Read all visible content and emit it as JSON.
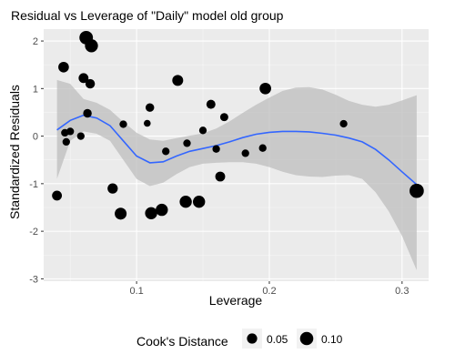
{
  "chart_data": {
    "type": "scatter",
    "title": "Residual vs Leverage of \"Daily\" model old group",
    "xlabel": "Leverage",
    "ylabel": "Standardized Residuals",
    "xlim": [
      0.03,
      0.32
    ],
    "ylim": [
      -3.05,
      2.25
    ],
    "x_ticks": [
      0.1,
      0.2,
      0.3
    ],
    "x_tick_labels": [
      "0.1",
      "0.2",
      "0.3"
    ],
    "y_ticks": [
      -3,
      -2,
      -1,
      0,
      1,
      2
    ],
    "y_tick_labels": [
      "-3",
      "-2",
      "-1",
      "0",
      "1",
      "2"
    ],
    "grid": true,
    "background_color": "#ebebeb",
    "point_color": "#000000",
    "smooth_color": "#3366ff",
    "band_color": "#bdbdbd",
    "legend": {
      "title": "Cook's Distance",
      "position": "bottom",
      "entries": [
        {
          "label": "0.05",
          "cooks": 0.05
        },
        {
          "label": "0.10",
          "cooks": 0.1
        }
      ]
    },
    "points": [
      {
        "x": 0.04,
        "y": -1.25,
        "cooks": 0.045
      },
      {
        "x": 0.045,
        "y": 1.45,
        "cooks": 0.055
      },
      {
        "x": 0.046,
        "y": 0.07,
        "cooks": 0.02
      },
      {
        "x": 0.047,
        "y": -0.12,
        "cooks": 0.02
      },
      {
        "x": 0.05,
        "y": 0.1,
        "cooks": 0.02
      },
      {
        "x": 0.058,
        "y": 0.0,
        "cooks": 0.02
      },
      {
        "x": 0.06,
        "y": 1.22,
        "cooks": 0.045
      },
      {
        "x": 0.062,
        "y": 2.07,
        "cooks": 0.105
      },
      {
        "x": 0.063,
        "y": 0.48,
        "cooks": 0.03
      },
      {
        "x": 0.065,
        "y": 1.1,
        "cooks": 0.04
      },
      {
        "x": 0.066,
        "y": 1.9,
        "cooks": 0.095
      },
      {
        "x": 0.082,
        "y": -1.1,
        "cooks": 0.05
      },
      {
        "x": 0.088,
        "y": -1.63,
        "cooks": 0.075
      },
      {
        "x": 0.09,
        "y": 0.25,
        "cooks": 0.02
      },
      {
        "x": 0.108,
        "y": 0.27,
        "cooks": 0.015
      },
      {
        "x": 0.11,
        "y": 0.6,
        "cooks": 0.03
      },
      {
        "x": 0.111,
        "y": -1.62,
        "cooks": 0.08
      },
      {
        "x": 0.119,
        "y": -1.55,
        "cooks": 0.08
      },
      {
        "x": 0.122,
        "y": -0.32,
        "cooks": 0.02
      },
      {
        "x": 0.131,
        "y": 1.17,
        "cooks": 0.06
      },
      {
        "x": 0.137,
        "y": -1.38,
        "cooks": 0.08
      },
      {
        "x": 0.138,
        "y": -0.15,
        "cooks": 0.02
      },
      {
        "x": 0.147,
        "y": -1.38,
        "cooks": 0.08
      },
      {
        "x": 0.15,
        "y": 0.12,
        "cooks": 0.02
      },
      {
        "x": 0.156,
        "y": 0.67,
        "cooks": 0.035
      },
      {
        "x": 0.16,
        "y": -0.27,
        "cooks": 0.02
      },
      {
        "x": 0.163,
        "y": -0.85,
        "cooks": 0.045
      },
      {
        "x": 0.166,
        "y": 0.4,
        "cooks": 0.025
      },
      {
        "x": 0.182,
        "y": -0.36,
        "cooks": 0.02
      },
      {
        "x": 0.195,
        "y": -0.25,
        "cooks": 0.02
      },
      {
        "x": 0.197,
        "y": 1.0,
        "cooks": 0.07
      },
      {
        "x": 0.256,
        "y": 0.26,
        "cooks": 0.02
      },
      {
        "x": 0.311,
        "y": -1.15,
        "cooks": 0.12
      }
    ],
    "smooth": [
      {
        "x": 0.04,
        "y": 0.13,
        "lo": -0.9,
        "hi": 1.18
      },
      {
        "x": 0.05,
        "y": 0.33,
        "lo": -0.1,
        "hi": 1.1
      },
      {
        "x": 0.06,
        "y": 0.44,
        "lo": 0.1,
        "hi": 0.78
      },
      {
        "x": 0.07,
        "y": 0.38,
        "lo": 0.05,
        "hi": 0.7
      },
      {
        "x": 0.08,
        "y": 0.22,
        "lo": -0.1,
        "hi": 0.55
      },
      {
        "x": 0.09,
        "y": -0.1,
        "lo": -0.5,
        "hi": 0.3
      },
      {
        "x": 0.1,
        "y": -0.42,
        "lo": -0.9,
        "hi": 0.07
      },
      {
        "x": 0.11,
        "y": -0.56,
        "lo": -1.05,
        "hi": -0.07
      },
      {
        "x": 0.12,
        "y": -0.54,
        "lo": -0.98,
        "hi": -0.1
      },
      {
        "x": 0.13,
        "y": -0.42,
        "lo": -0.8,
        "hi": -0.04
      },
      {
        "x": 0.14,
        "y": -0.32,
        "lo": -0.65,
        "hi": 0.01
      },
      {
        "x": 0.15,
        "y": -0.26,
        "lo": -0.58,
        "hi": 0.06
      },
      {
        "x": 0.16,
        "y": -0.2,
        "lo": -0.56,
        "hi": 0.16
      },
      {
        "x": 0.17,
        "y": -0.12,
        "lo": -0.55,
        "hi": 0.31
      },
      {
        "x": 0.18,
        "y": -0.03,
        "lo": -0.55,
        "hi": 0.49
      },
      {
        "x": 0.19,
        "y": 0.04,
        "lo": -0.58,
        "hi": 0.66
      },
      {
        "x": 0.2,
        "y": 0.08,
        "lo": -0.65,
        "hi": 0.81
      },
      {
        "x": 0.21,
        "y": 0.1,
        "lo": -0.75,
        "hi": 0.95
      },
      {
        "x": 0.22,
        "y": 0.1,
        "lo": -0.82,
        "hi": 1.02
      },
      {
        "x": 0.23,
        "y": 0.09,
        "lo": -0.85,
        "hi": 1.03
      },
      {
        "x": 0.24,
        "y": 0.06,
        "lo": -0.86,
        "hi": 0.98
      },
      {
        "x": 0.25,
        "y": 0.02,
        "lo": -0.83,
        "hi": 0.87
      },
      {
        "x": 0.26,
        "y": -0.04,
        "lo": -0.82,
        "hi": 0.74
      },
      {
        "x": 0.27,
        "y": -0.12,
        "lo": -0.9,
        "hi": 0.66
      },
      {
        "x": 0.28,
        "y": -0.28,
        "lo": -1.18,
        "hi": 0.62
      },
      {
        "x": 0.29,
        "y": -0.5,
        "lo": -1.58,
        "hi": 0.66
      },
      {
        "x": 0.3,
        "y": -0.75,
        "lo": -2.1,
        "hi": 0.75
      },
      {
        "x": 0.311,
        "y": -1.02,
        "lo": -2.82,
        "hi": 0.86
      }
    ]
  }
}
